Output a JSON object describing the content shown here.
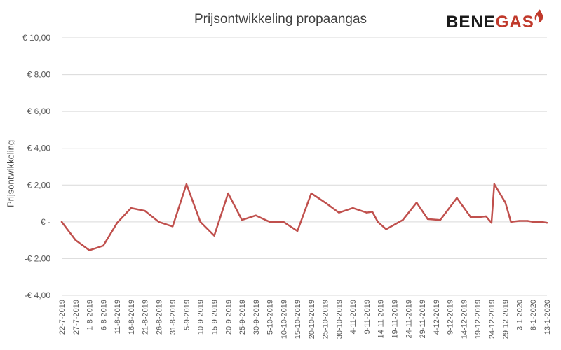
{
  "chart_data": {
    "type": "line",
    "title": "Prijsontwikkeling propaangas",
    "ylabel": "Prijsontwikkeling",
    "xlabel": "",
    "ylim": [
      -4,
      10
    ],
    "yticks": [
      -4,
      -2,
      0,
      2,
      4,
      6,
      8,
      10
    ],
    "ytick_labels": [
      "-€ 4,00",
      "-€ 2,00",
      "€ -",
      "€ 2,00",
      "€ 4,00",
      "€ 6,00",
      "€ 8,00",
      "€ 10,00"
    ],
    "categories": [
      "22-7-2019",
      "27-7-2019",
      "1-8-2019",
      "6-8-2019",
      "11-8-2019",
      "16-8-2019",
      "21-8-2019",
      "26-8-2019",
      "31-8-2019",
      "5-9-2019",
      "10-9-2019",
      "15-9-2019",
      "20-9-2019",
      "25-9-2019",
      "30-9-2019",
      "5-10-2019",
      "10-10-2019",
      "15-10-2019",
      "20-10-2019",
      "25-10-2019",
      "30-10-2019",
      "4-11-2019",
      "9-11-2019",
      "14-11-2019",
      "19-11-2019",
      "24-11-2019",
      "29-11-2019",
      "4-12-2019",
      "9-12-2019",
      "14-12-2019",
      "19-12-2019",
      "24-12-2019",
      "29-12-2019",
      "3-1-2020",
      "8-1-2020",
      "13-1-2020"
    ],
    "grid": true,
    "legend": "none",
    "line_color": "#c0504d",
    "series": [
      {
        "name": "",
        "x": [
          0,
          1,
          2,
          3,
          4,
          5,
          6,
          7,
          8,
          9,
          10,
          11,
          12,
          13,
          14,
          15,
          16,
          17,
          18,
          19,
          20,
          21,
          22,
          22.4,
          22.8,
          23.4,
          24.6,
          25.6,
          26.4,
          27.3,
          28.5,
          29.5,
          30,
          30.6,
          31,
          31.2,
          32,
          32.4,
          33,
          33.6,
          34,
          34.3,
          34.6,
          35
        ],
        "values": [
          0,
          -1,
          -1.55,
          -1.3,
          -0.05,
          0.75,
          0.6,
          0,
          -0.25,
          2.05,
          0,
          -0.75,
          1.55,
          0.1,
          0.35,
          0,
          0,
          -0.5,
          1.55,
          1.05,
          0.5,
          0.75,
          0.5,
          0.55,
          0,
          -0.4,
          0.1,
          1.05,
          0.15,
          0.1,
          1.3,
          0.25,
          0.25,
          0.3,
          -0.05,
          2.05,
          1.05,
          0,
          0.05,
          0.05,
          0,
          0,
          0,
          -0.05
        ]
      }
    ]
  },
  "logo": {
    "part1": "BENE",
    "part2": "GAS"
  }
}
